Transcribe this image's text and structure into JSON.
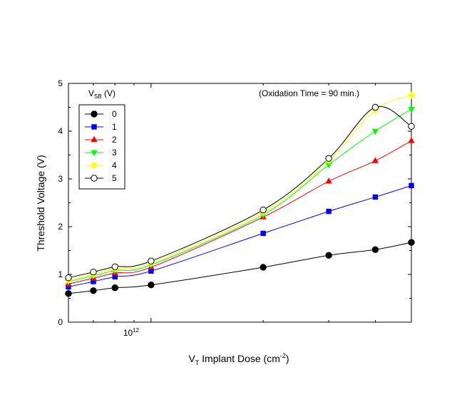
{
  "chart_data": {
    "type": "line",
    "title": "",
    "xlabel": "V",
    "xlabel_sub": "T",
    "xlabel_rest": " Implant Dose (cm",
    "xlabel_sup": "-2",
    "xlabel_end": ")",
    "ylabel": "Threshold Voltage (V)",
    "x_scale": "log",
    "x": [
      600000000000.0,
      700000000000.0,
      800000000000.0,
      1000000000000.0,
      2000000000000.0,
      3000000000000.0,
      4000000000000.0,
      5000000000000.0
    ],
    "xlim": [
      600000000000.0,
      5000000000000.0
    ],
    "ylim": [
      0,
      5
    ],
    "y_ticks": [
      "0",
      "1",
      "2",
      "3",
      "4",
      "5"
    ],
    "x_tick_label": {
      "base": "10",
      "exp": "12"
    },
    "grid": false,
    "legend": {
      "title": "V",
      "title_sub": "SB",
      "title_rest": " (V)",
      "placement": "top-left"
    },
    "annotation": "(Oxidation Time = 90 min.)",
    "series": [
      {
        "name": "0",
        "color": "#000000",
        "marker": "circle-filled",
        "values": [
          0.6,
          0.66,
          0.72,
          0.78,
          1.15,
          1.4,
          1.52,
          1.67
        ]
      },
      {
        "name": "1",
        "color": "#0000ff",
        "marker": "square",
        "values": [
          0.74,
          0.85,
          0.95,
          1.07,
          1.86,
          2.32,
          2.62,
          2.86
        ]
      },
      {
        "name": "2",
        "color": "#ff0000",
        "marker": "triangle-up",
        "values": [
          0.8,
          0.92,
          1.03,
          1.15,
          2.2,
          2.95,
          3.38,
          3.8
        ]
      },
      {
        "name": "3",
        "color": "#00ff00",
        "marker": "triangle-down",
        "values": [
          0.85,
          0.97,
          1.08,
          1.2,
          2.25,
          3.3,
          4.0,
          4.46
        ]
      },
      {
        "name": "4",
        "color": "#ffff00",
        "marker": "diamond",
        "values": [
          0.88,
          1.0,
          1.12,
          1.24,
          2.3,
          3.38,
          4.45,
          4.75
        ]
      },
      {
        "name": "5",
        "color": "#000000",
        "marker": "circle-open",
        "values": [
          0.93,
          1.05,
          1.16,
          1.28,
          2.35,
          3.43,
          4.5,
          4.1
        ]
      }
    ]
  }
}
